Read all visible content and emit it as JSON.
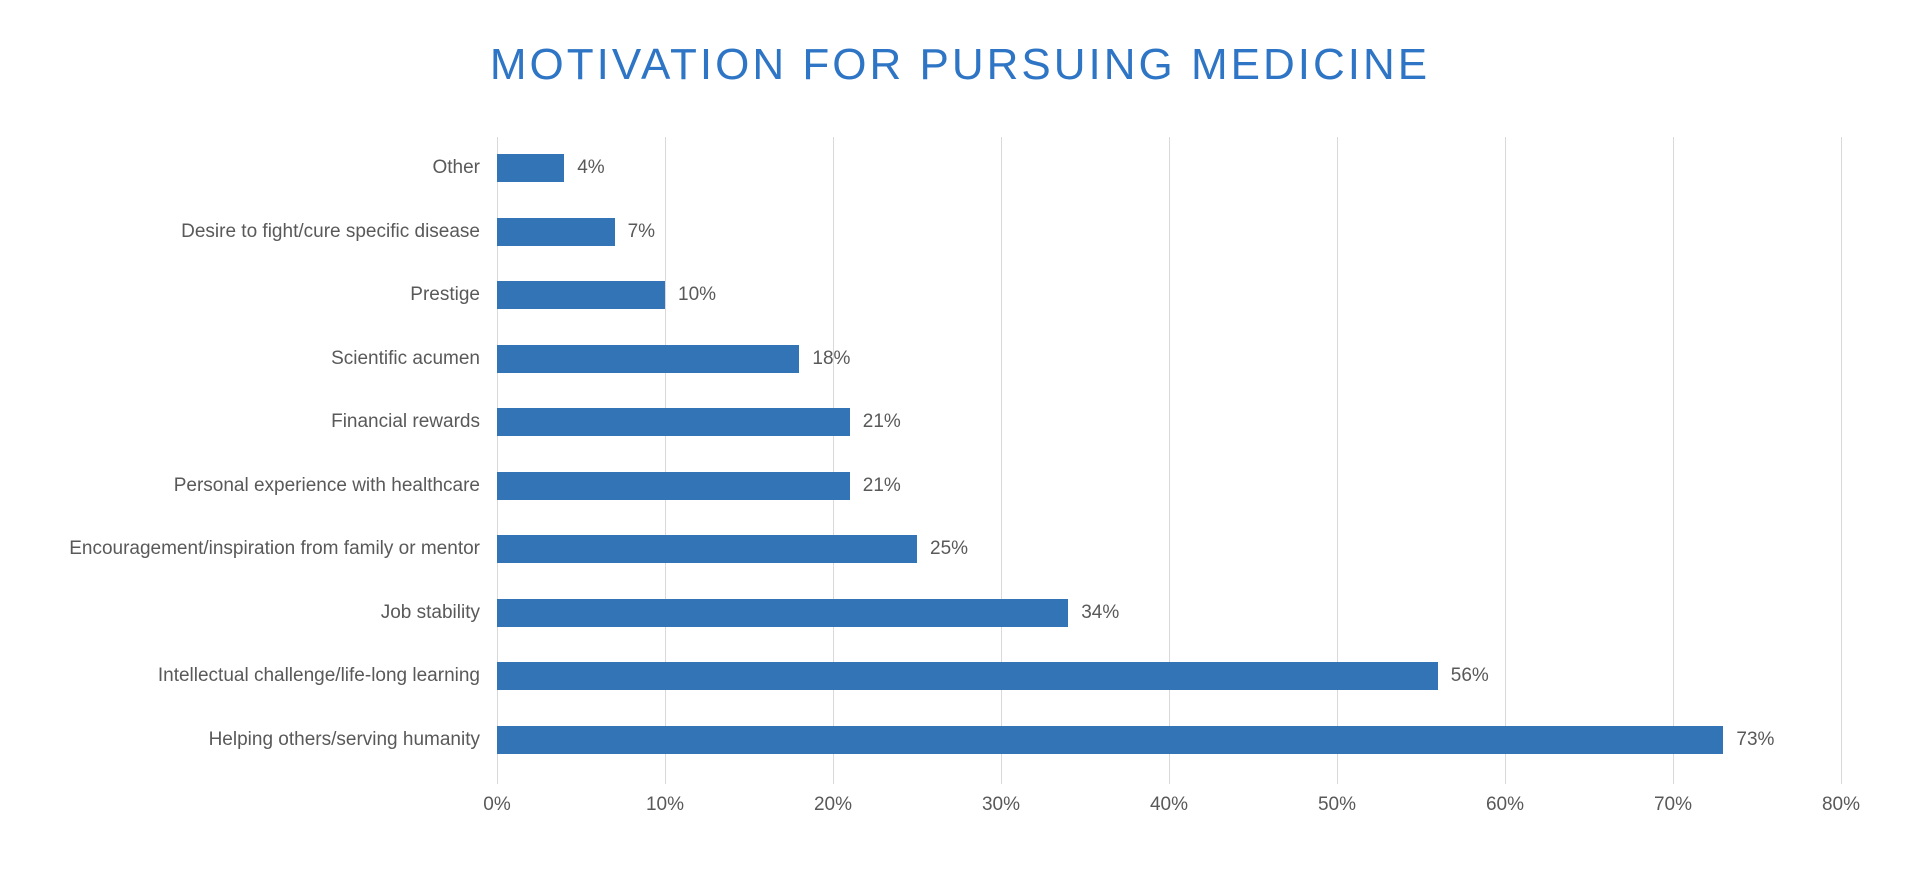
{
  "page": {
    "background": "#ffffff"
  },
  "chart_data": {
    "type": "bar",
    "orientation": "horizontal",
    "title": "MOTIVATION FOR PURSUING MEDICINE",
    "categories": [
      "Other",
      "Desire to fight/cure specific disease",
      "Prestige",
      "Scientific acumen",
      "Financial rewards",
      "Personal experience with healthcare",
      "Encouragement/inspiration from family or mentor",
      "Job stability",
      "Intellectual challenge/life-long learning",
      "Helping others/serving humanity"
    ],
    "values": [
      4,
      7,
      10,
      18,
      21,
      21,
      25,
      34,
      56,
      73
    ],
    "value_labels": [
      "4%",
      "7%",
      "10%",
      "18%",
      "21%",
      "21%",
      "25%",
      "34%",
      "56%",
      "73%"
    ],
    "x_ticks": [
      "0%",
      "10%",
      "20%",
      "30%",
      "40%",
      "50%",
      "60%",
      "70%",
      "80%"
    ],
    "x_tick_values": [
      0,
      10,
      20,
      30,
      40,
      50,
      60,
      70,
      80
    ],
    "xlim": [
      0,
      80
    ],
    "xlabel": "",
    "ylabel": "",
    "legend": "none",
    "grid": "vertical",
    "colors": {
      "bar": "#3274B5",
      "title": "#2E75C5",
      "gridline": "#D9D9D9",
      "category_label": "#595959",
      "value_label": "#595959",
      "axis_label": "#595959"
    }
  }
}
